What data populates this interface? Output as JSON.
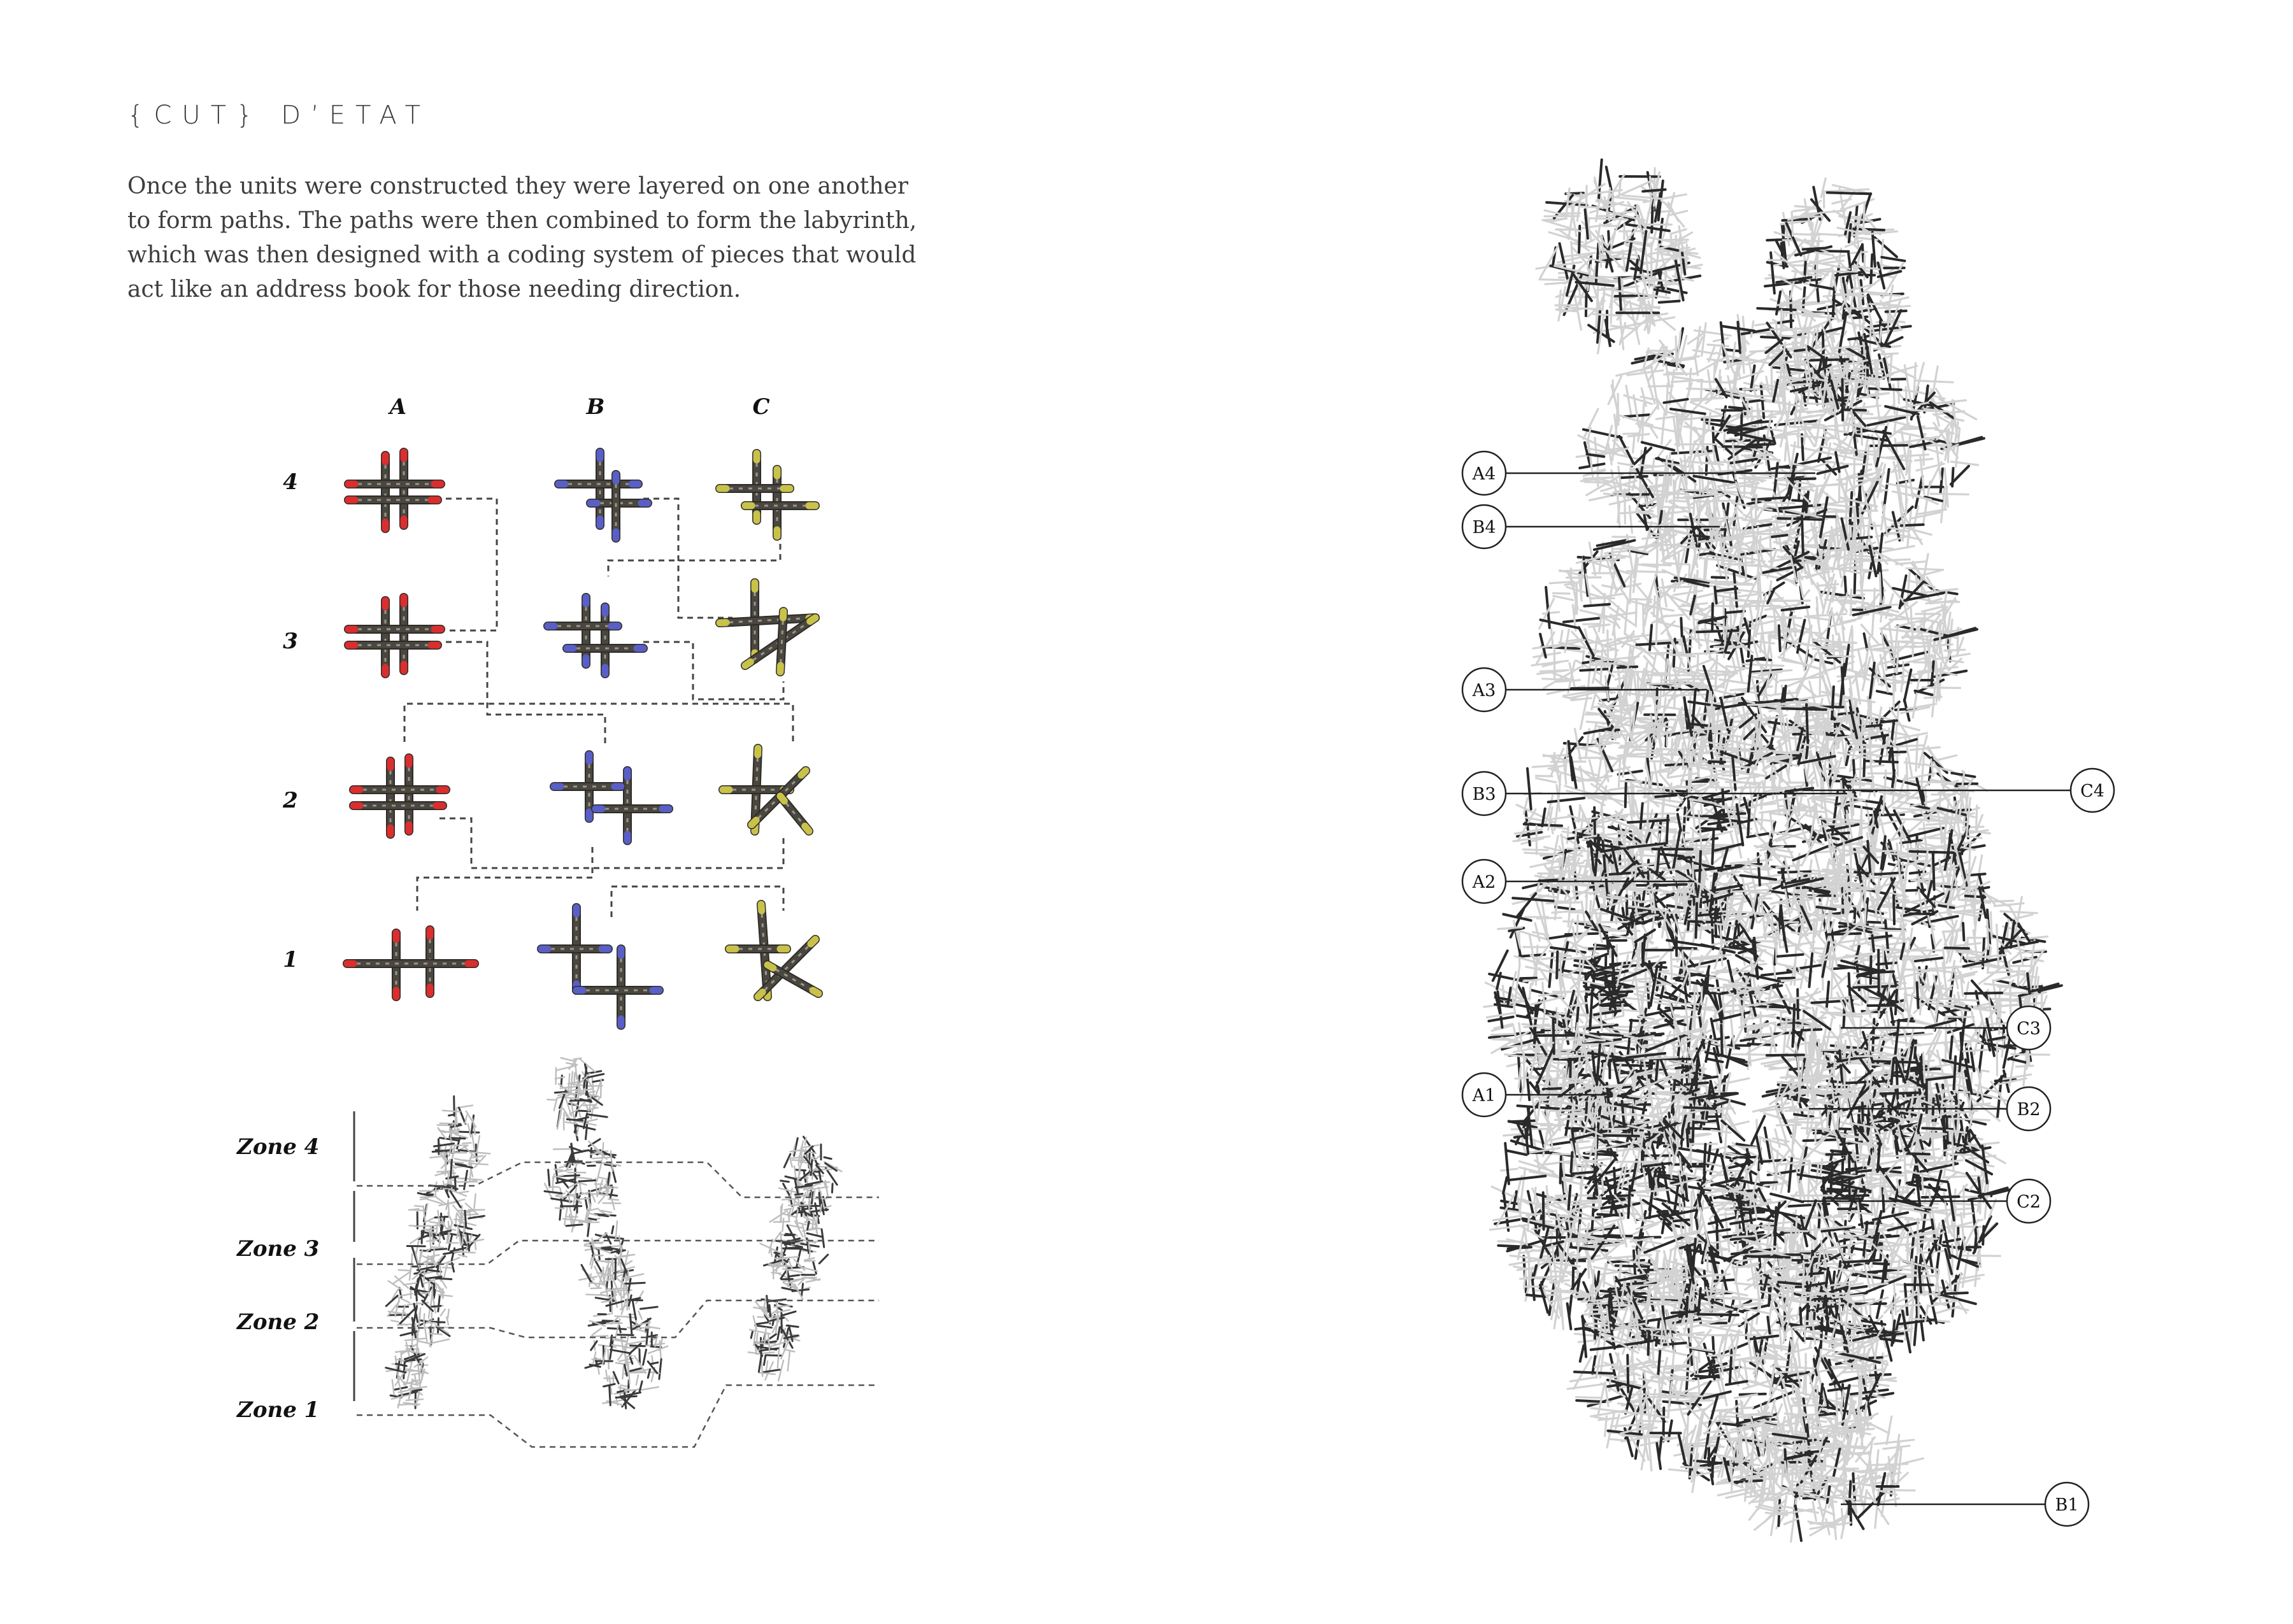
{
  "title": "{CUT} D’ETAT",
  "intro": "Once the units were constructed they were layered on one another to form paths. The paths were then combined to form the labyrinth, which was then designed with a coding system of pieces that would act like an address book for those needing direction.",
  "unit_matrix": {
    "columns": [
      "A",
      "B",
      "C"
    ],
    "rows": [
      "4",
      "3",
      "2",
      "1"
    ],
    "tip_colors": {
      "A": "#d92f2f",
      "B": "#5a5fc6",
      "C": "#c9c24a"
    },
    "body_color": "#4a4740"
  },
  "zones": [
    "Zone 4",
    "Zone 3",
    "Zone 2",
    "Zone 1"
  ],
  "labyrinth": {
    "callouts_left": [
      "A4",
      "B4",
      "A3",
      "B3",
      "A2",
      "A1"
    ],
    "callouts_right": [
      "C4",
      "C3",
      "B2",
      "C2",
      "B1"
    ]
  }
}
